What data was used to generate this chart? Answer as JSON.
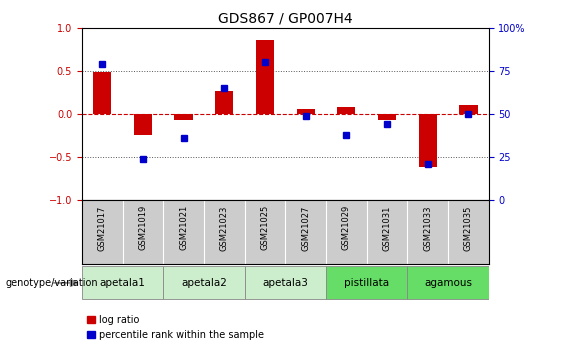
{
  "title": "GDS867 / GP007H4",
  "samples": [
    "GSM21017",
    "GSM21019",
    "GSM21021",
    "GSM21023",
    "GSM21025",
    "GSM21027",
    "GSM21029",
    "GSM21031",
    "GSM21033",
    "GSM21035"
  ],
  "log_ratio": [
    0.49,
    -0.25,
    -0.07,
    0.27,
    0.86,
    0.06,
    0.08,
    -0.07,
    -0.62,
    0.1
  ],
  "percentile_rank": [
    79,
    24,
    36,
    65,
    80,
    49,
    38,
    44,
    21,
    50
  ],
  "groups": [
    {
      "label": "apetala1",
      "start": 0,
      "end": 2,
      "color": "#cceecc"
    },
    {
      "label": "apetala2",
      "start": 2,
      "end": 4,
      "color": "#cceecc"
    },
    {
      "label": "apetala3",
      "start": 4,
      "end": 6,
      "color": "#cceecc"
    },
    {
      "label": "pistillata",
      "start": 6,
      "end": 8,
      "color": "#66dd66"
    },
    {
      "label": "agamous",
      "start": 8,
      "end": 10,
      "color": "#66dd66"
    }
  ],
  "bar_color_red": "#cc0000",
  "dot_color_blue": "#0000cc",
  "hline_red_color": "#cc0000",
  "dotted_color": "#555555",
  "left_ylim": [
    -1,
    1
  ],
  "right_ylim": [
    0,
    100
  ],
  "left_yticks": [
    -1,
    -0.5,
    0,
    0.5,
    1
  ],
  "right_yticks": [
    0,
    25,
    50,
    75,
    100
  ],
  "right_yticklabels": [
    "0",
    "25",
    "50",
    "75",
    "100%"
  ],
  "hlines_dotted": [
    0.5,
    -0.5
  ],
  "background_color": "#ffffff",
  "sample_label_bg": "#cccccc",
  "genotype_label": "genotype/variation",
  "legend_log": "log ratio",
  "legend_pct": "percentile rank within the sample"
}
